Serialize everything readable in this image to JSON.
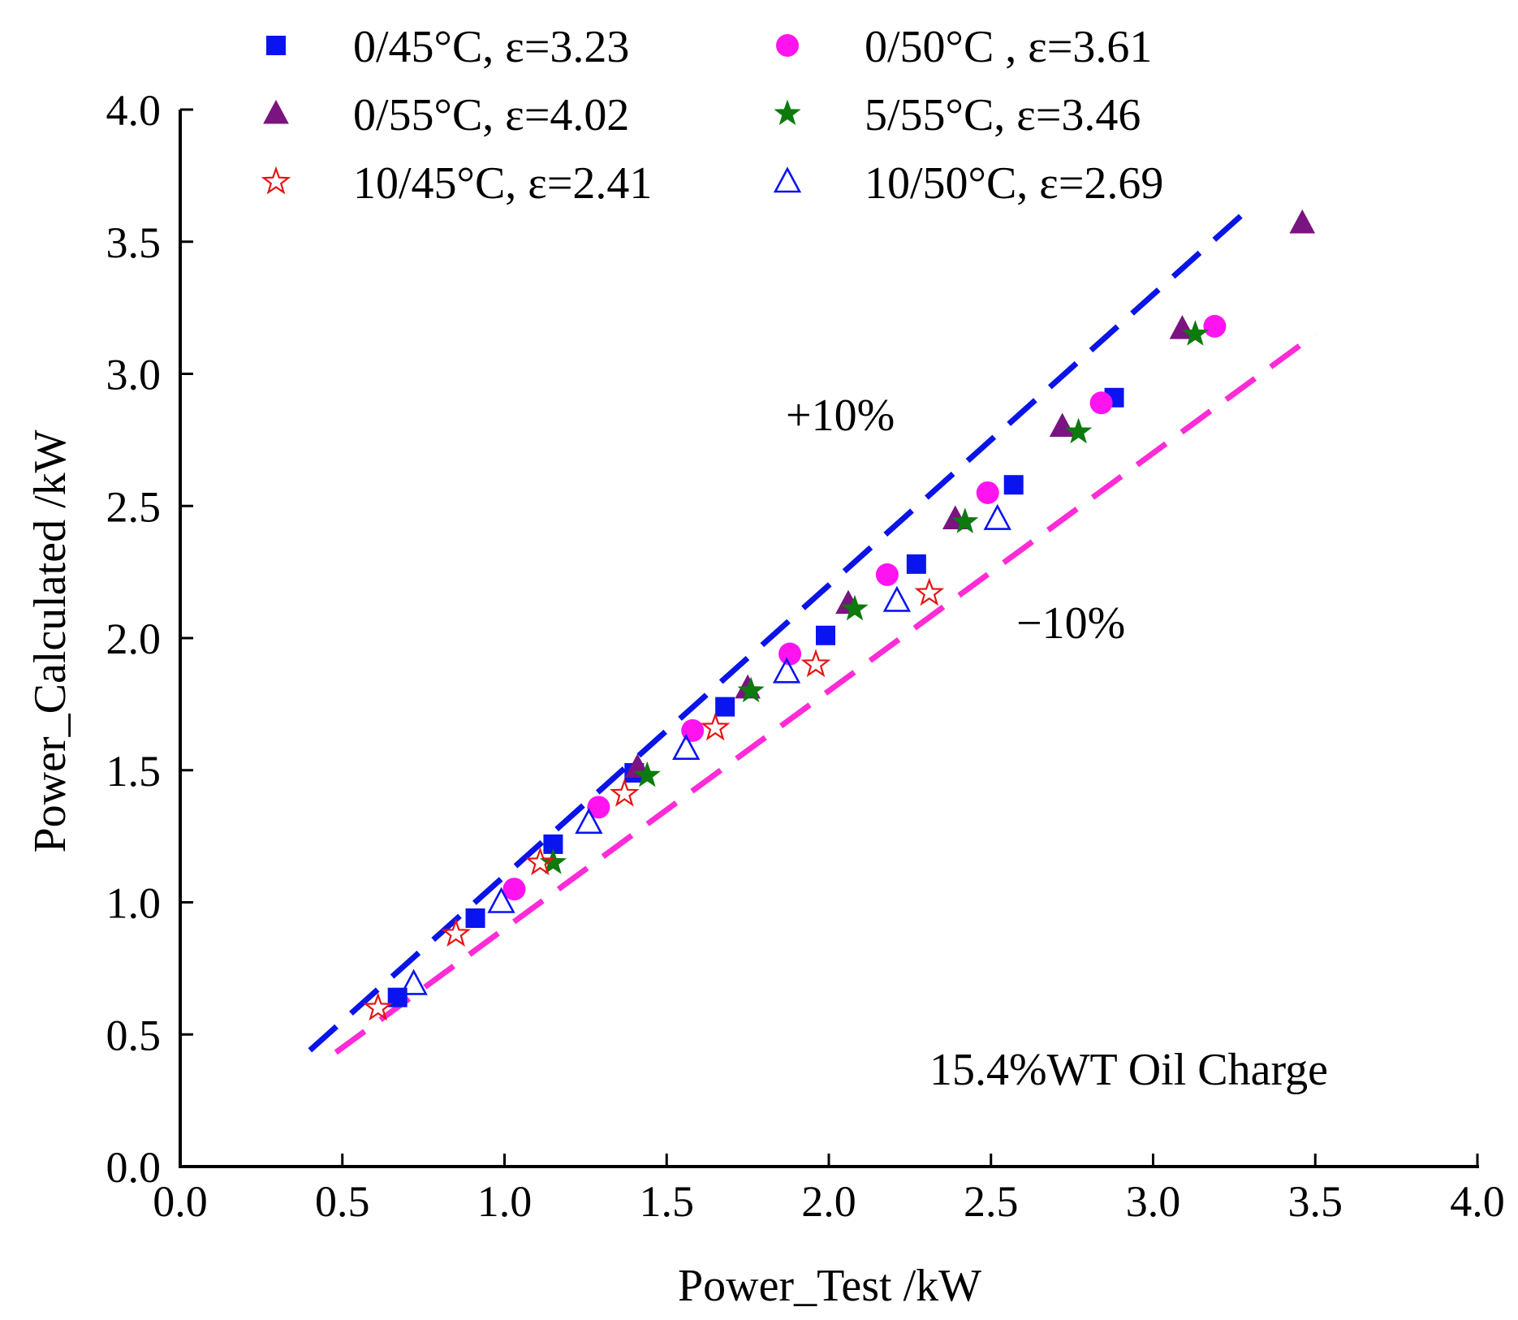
{
  "chart_data": {
    "type": "scatter",
    "title": "",
    "xlabel": "Power_Test /kW",
    "ylabel": "Power_Calculated /kW",
    "xlim": [
      0.0,
      4.0
    ],
    "ylim": [
      0.0,
      4.0
    ],
    "xticks": [
      "0.0",
      "0.5",
      "1.0",
      "1.5",
      "2.0",
      "2.5",
      "3.0",
      "3.5",
      "4.0"
    ],
    "yticks": [
      "0.0",
      "0.5",
      "1.0",
      "1.5",
      "2.0",
      "2.5",
      "3.0",
      "3.5",
      "4.0"
    ],
    "grid": false,
    "legend_position": "top",
    "annotation": "15.4%WT Oil Charge",
    "reference_lines": [
      {
        "name": "+10%",
        "label": "+10%",
        "factor": 1.1,
        "x_range": [
          0.4,
          3.27
        ],
        "color": "#0a14e6"
      },
      {
        "name": "-10%",
        "label": "−10%",
        "factor": 0.9,
        "x_range": [
          0.48,
          3.5
        ],
        "color": "#ff2bd6"
      }
    ],
    "series": [
      {
        "name": "0/45°C",
        "label": "0/45°C, ε=3.23",
        "marker": "square",
        "color": "#0a14f0",
        "filled": true,
        "x": [
          0.67,
          0.91,
          1.15,
          1.4,
          1.68,
          1.99,
          2.27,
          2.57,
          2.88
        ],
        "y": [
          0.64,
          0.94,
          1.22,
          1.49,
          1.74,
          2.01,
          2.28,
          2.58,
          2.91
        ]
      },
      {
        "name": "0/50°C",
        "label": "0/50°C , ε=3.61",
        "marker": "circle",
        "color": "#ff14ef",
        "filled": true,
        "x": [
          1.03,
          1.29,
          1.58,
          1.88,
          2.18,
          2.49,
          2.84,
          3.19
        ],
        "y": [
          1.05,
          1.36,
          1.65,
          1.94,
          2.24,
          2.55,
          2.89,
          3.18
        ]
      },
      {
        "name": "0/55°C",
        "label": "0/55°C, ε=4.02",
        "marker": "triangle",
        "color": "#7a1480",
        "filled": true,
        "x": [
          1.41,
          1.75,
          2.06,
          2.39,
          2.72,
          3.09,
          3.46
        ],
        "y": [
          1.51,
          1.81,
          2.13,
          2.45,
          2.8,
          3.17,
          3.57
        ]
      },
      {
        "name": "5/55°C",
        "label": "5/55°C, ε=3.46",
        "marker": "star",
        "color": "#0d7a0d",
        "filled": true,
        "x": [
          1.15,
          1.44,
          1.76,
          2.08,
          2.42,
          2.77,
          3.13
        ],
        "y": [
          1.15,
          1.48,
          1.8,
          2.11,
          2.44,
          2.78,
          3.15
        ]
      },
      {
        "name": "10/45°C",
        "label": "10/45°C, ε=2.41",
        "marker": "star-open",
        "color": "#e61414",
        "filled": false,
        "x": [
          0.61,
          0.85,
          1.11,
          1.37,
          1.65,
          1.96,
          2.31
        ],
        "y": [
          0.6,
          0.88,
          1.15,
          1.41,
          1.66,
          1.9,
          2.17
        ]
      },
      {
        "name": "10/50°C",
        "label": "10/50°C, ε=2.69",
        "marker": "triangle-open",
        "color": "#0a14f0",
        "filled": false,
        "x": [
          0.72,
          0.99,
          1.26,
          1.56,
          1.87,
          2.21,
          2.52
        ],
        "y": [
          0.69,
          1.0,
          1.3,
          1.58,
          1.87,
          2.14,
          2.45
        ]
      }
    ]
  }
}
